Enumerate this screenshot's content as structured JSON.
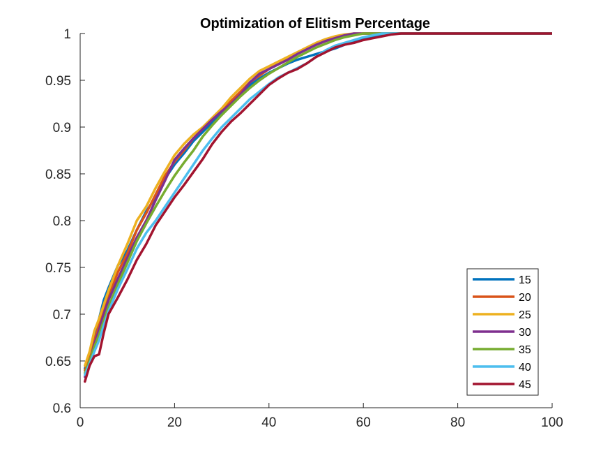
{
  "chart_data": {
    "type": "line",
    "title": "Optimization of Elitism Percentage",
    "xlabel": "",
    "ylabel": "",
    "xlim": [
      0,
      100
    ],
    "ylim": [
      0.6,
      1
    ],
    "xticks": [
      0,
      20,
      40,
      60,
      80,
      100
    ],
    "xtick_labels": [
      "0",
      "20",
      "40",
      "60",
      "80",
      "100"
    ],
    "yticks": [
      0.6,
      0.65,
      0.7,
      0.75,
      0.8,
      0.85,
      0.9,
      0.95,
      1
    ],
    "ytick_labels": [
      "0.6",
      "0.65",
      "0.7",
      "0.75",
      "0.8",
      "0.85",
      "0.9",
      "0.95",
      "1"
    ],
    "grid": false,
    "legend_position": "bottom-right",
    "series": [
      {
        "name": "15",
        "color": "#0072BD",
        "points": [
          [
            1,
            0.642
          ],
          [
            2,
            0.655
          ],
          [
            3,
            0.68
          ],
          [
            4,
            0.695
          ],
          [
            5,
            0.715
          ],
          [
            6,
            0.728
          ],
          [
            8,
            0.752
          ],
          [
            10,
            0.768
          ],
          [
            12,
            0.79
          ],
          [
            14,
            0.81
          ],
          [
            16,
            0.825
          ],
          [
            18,
            0.845
          ],
          [
            20,
            0.86
          ],
          [
            22,
            0.872
          ],
          [
            24,
            0.885
          ],
          [
            26,
            0.895
          ],
          [
            28,
            0.905
          ],
          [
            30,
            0.915
          ],
          [
            32,
            0.925
          ],
          [
            34,
            0.935
          ],
          [
            36,
            0.945
          ],
          [
            38,
            0.952
          ],
          [
            40,
            0.958
          ],
          [
            42,
            0.963
          ],
          [
            44,
            0.968
          ],
          [
            46,
            0.972
          ],
          [
            48,
            0.975
          ],
          [
            50,
            0.978
          ],
          [
            52,
            0.981
          ],
          [
            54,
            0.984
          ],
          [
            56,
            0.988
          ],
          [
            58,
            0.992
          ],
          [
            60,
            0.995
          ],
          [
            62,
            0.997
          ],
          [
            64,
            0.999
          ],
          [
            66,
            1.0
          ],
          [
            100,
            1.0
          ]
        ]
      },
      {
        "name": "20",
        "color": "#D95319",
        "points": [
          [
            1,
            0.64
          ],
          [
            2,
            0.652
          ],
          [
            3,
            0.672
          ],
          [
            4,
            0.688
          ],
          [
            5,
            0.705
          ],
          [
            6,
            0.72
          ],
          [
            8,
            0.745
          ],
          [
            10,
            0.765
          ],
          [
            12,
            0.79
          ],
          [
            14,
            0.808
          ],
          [
            16,
            0.828
          ],
          [
            18,
            0.848
          ],
          [
            20,
            0.863
          ],
          [
            22,
            0.875
          ],
          [
            24,
            0.888
          ],
          [
            26,
            0.898
          ],
          [
            28,
            0.908
          ],
          [
            30,
            0.918
          ],
          [
            32,
            0.928
          ],
          [
            34,
            0.938
          ],
          [
            36,
            0.948
          ],
          [
            38,
            0.955
          ],
          [
            40,
            0.962
          ],
          [
            42,
            0.968
          ],
          [
            44,
            0.974
          ],
          [
            46,
            0.979
          ],
          [
            48,
            0.984
          ],
          [
            50,
            0.988
          ],
          [
            52,
            0.992
          ],
          [
            54,
            0.995
          ],
          [
            56,
            0.997
          ],
          [
            58,
            0.999
          ],
          [
            60,
            1.0
          ],
          [
            100,
            1.0
          ]
        ]
      },
      {
        "name": "25",
        "color": "#EDB120",
        "points": [
          [
            1,
            0.645
          ],
          [
            2,
            0.66
          ],
          [
            3,
            0.682
          ],
          [
            4,
            0.695
          ],
          [
            5,
            0.71
          ],
          [
            6,
            0.725
          ],
          [
            8,
            0.752
          ],
          [
            10,
            0.775
          ],
          [
            12,
            0.8
          ],
          [
            14,
            0.815
          ],
          [
            16,
            0.835
          ],
          [
            18,
            0.853
          ],
          [
            20,
            0.87
          ],
          [
            22,
            0.882
          ],
          [
            24,
            0.892
          ],
          [
            26,
            0.9
          ],
          [
            28,
            0.91
          ],
          [
            30,
            0.92
          ],
          [
            32,
            0.932
          ],
          [
            34,
            0.942
          ],
          [
            36,
            0.952
          ],
          [
            38,
            0.96
          ],
          [
            40,
            0.965
          ],
          [
            42,
            0.97
          ],
          [
            44,
            0.975
          ],
          [
            46,
            0.98
          ],
          [
            48,
            0.985
          ],
          [
            50,
            0.99
          ],
          [
            52,
            0.994
          ],
          [
            54,
            0.997
          ],
          [
            56,
            0.999
          ],
          [
            58,
            1.0
          ],
          [
            100,
            1.0
          ]
        ]
      },
      {
        "name": "30",
        "color": "#7E2F8E",
        "points": [
          [
            1,
            0.633
          ],
          [
            2,
            0.648
          ],
          [
            3,
            0.668
          ],
          [
            4,
            0.683
          ],
          [
            5,
            0.7
          ],
          [
            6,
            0.715
          ],
          [
            8,
            0.738
          ],
          [
            10,
            0.76
          ],
          [
            12,
            0.782
          ],
          [
            14,
            0.8
          ],
          [
            16,
            0.822
          ],
          [
            18,
            0.843
          ],
          [
            20,
            0.865
          ],
          [
            22,
            0.877
          ],
          [
            24,
            0.888
          ],
          [
            26,
            0.898
          ],
          [
            28,
            0.908
          ],
          [
            30,
            0.917
          ],
          [
            32,
            0.925
          ],
          [
            34,
            0.935
          ],
          [
            36,
            0.948
          ],
          [
            38,
            0.957
          ],
          [
            40,
            0.962
          ],
          [
            42,
            0.967
          ],
          [
            44,
            0.972
          ],
          [
            46,
            0.978
          ],
          [
            48,
            0.983
          ],
          [
            50,
            0.988
          ],
          [
            52,
            0.992
          ],
          [
            54,
            0.995
          ],
          [
            56,
            0.998
          ],
          [
            58,
            1.0
          ],
          [
            100,
            1.0
          ]
        ]
      },
      {
        "name": "35",
        "color": "#77AC30",
        "points": [
          [
            1,
            0.637
          ],
          [
            2,
            0.65
          ],
          [
            3,
            0.665
          ],
          [
            4,
            0.678
          ],
          [
            5,
            0.693
          ],
          [
            6,
            0.708
          ],
          [
            8,
            0.732
          ],
          [
            10,
            0.755
          ],
          [
            12,
            0.778
          ],
          [
            14,
            0.797
          ],
          [
            16,
            0.815
          ],
          [
            18,
            0.832
          ],
          [
            20,
            0.848
          ],
          [
            22,
            0.862
          ],
          [
            24,
            0.875
          ],
          [
            26,
            0.89
          ],
          [
            28,
            0.902
          ],
          [
            30,
            0.913
          ],
          [
            32,
            0.923
          ],
          [
            34,
            0.933
          ],
          [
            36,
            0.942
          ],
          [
            38,
            0.95
          ],
          [
            40,
            0.957
          ],
          [
            42,
            0.963
          ],
          [
            44,
            0.969
          ],
          [
            46,
            0.975
          ],
          [
            48,
            0.98
          ],
          [
            50,
            0.985
          ],
          [
            52,
            0.989
          ],
          [
            54,
            0.993
          ],
          [
            56,
            0.996
          ],
          [
            58,
            0.998
          ],
          [
            60,
            1.0
          ],
          [
            100,
            1.0
          ]
        ]
      },
      {
        "name": "40",
        "color": "#4DBEEE",
        "points": [
          [
            1,
            0.635
          ],
          [
            2,
            0.647
          ],
          [
            3,
            0.66
          ],
          [
            4,
            0.672
          ],
          [
            5,
            0.688
          ],
          [
            6,
            0.703
          ],
          [
            8,
            0.727
          ],
          [
            10,
            0.748
          ],
          [
            12,
            0.77
          ],
          [
            14,
            0.787
          ],
          [
            16,
            0.8
          ],
          [
            18,
            0.815
          ],
          [
            20,
            0.83
          ],
          [
            22,
            0.845
          ],
          [
            24,
            0.86
          ],
          [
            26,
            0.875
          ],
          [
            28,
            0.888
          ],
          [
            30,
            0.9
          ],
          [
            32,
            0.91
          ],
          [
            34,
            0.92
          ],
          [
            36,
            0.93
          ],
          [
            38,
            0.938
          ],
          [
            40,
            0.946
          ],
          [
            42,
            0.953
          ],
          [
            44,
            0.958
          ],
          [
            46,
            0.963
          ],
          [
            48,
            0.968
          ],
          [
            50,
            0.975
          ],
          [
            52,
            0.982
          ],
          [
            54,
            0.987
          ],
          [
            56,
            0.99
          ],
          [
            58,
            0.993
          ],
          [
            60,
            0.996
          ],
          [
            62,
            0.998
          ],
          [
            64,
            1.0
          ],
          [
            100,
            1.0
          ]
        ]
      },
      {
        "name": "45",
        "color": "#A2142F",
        "points": [
          [
            1,
            0.628
          ],
          [
            2,
            0.645
          ],
          [
            3,
            0.655
          ],
          [
            4,
            0.657
          ],
          [
            5,
            0.68
          ],
          [
            6,
            0.7
          ],
          [
            8,
            0.718
          ],
          [
            10,
            0.737
          ],
          [
            12,
            0.758
          ],
          [
            14,
            0.775
          ],
          [
            16,
            0.795
          ],
          [
            18,
            0.81
          ],
          [
            20,
            0.825
          ],
          [
            22,
            0.838
          ],
          [
            24,
            0.852
          ],
          [
            26,
            0.866
          ],
          [
            28,
            0.882
          ],
          [
            30,
            0.895
          ],
          [
            32,
            0.906
          ],
          [
            34,
            0.915
          ],
          [
            36,
            0.925
          ],
          [
            38,
            0.935
          ],
          [
            40,
            0.945
          ],
          [
            42,
            0.952
          ],
          [
            44,
            0.958
          ],
          [
            46,
            0.962
          ],
          [
            48,
            0.968
          ],
          [
            50,
            0.975
          ],
          [
            52,
            0.98
          ],
          [
            54,
            0.985
          ],
          [
            56,
            0.988
          ],
          [
            58,
            0.99
          ],
          [
            60,
            0.993
          ],
          [
            62,
            0.995
          ],
          [
            64,
            0.997
          ],
          [
            66,
            0.999
          ],
          [
            68,
            1.0
          ],
          [
            100,
            1.0
          ]
        ]
      }
    ]
  }
}
